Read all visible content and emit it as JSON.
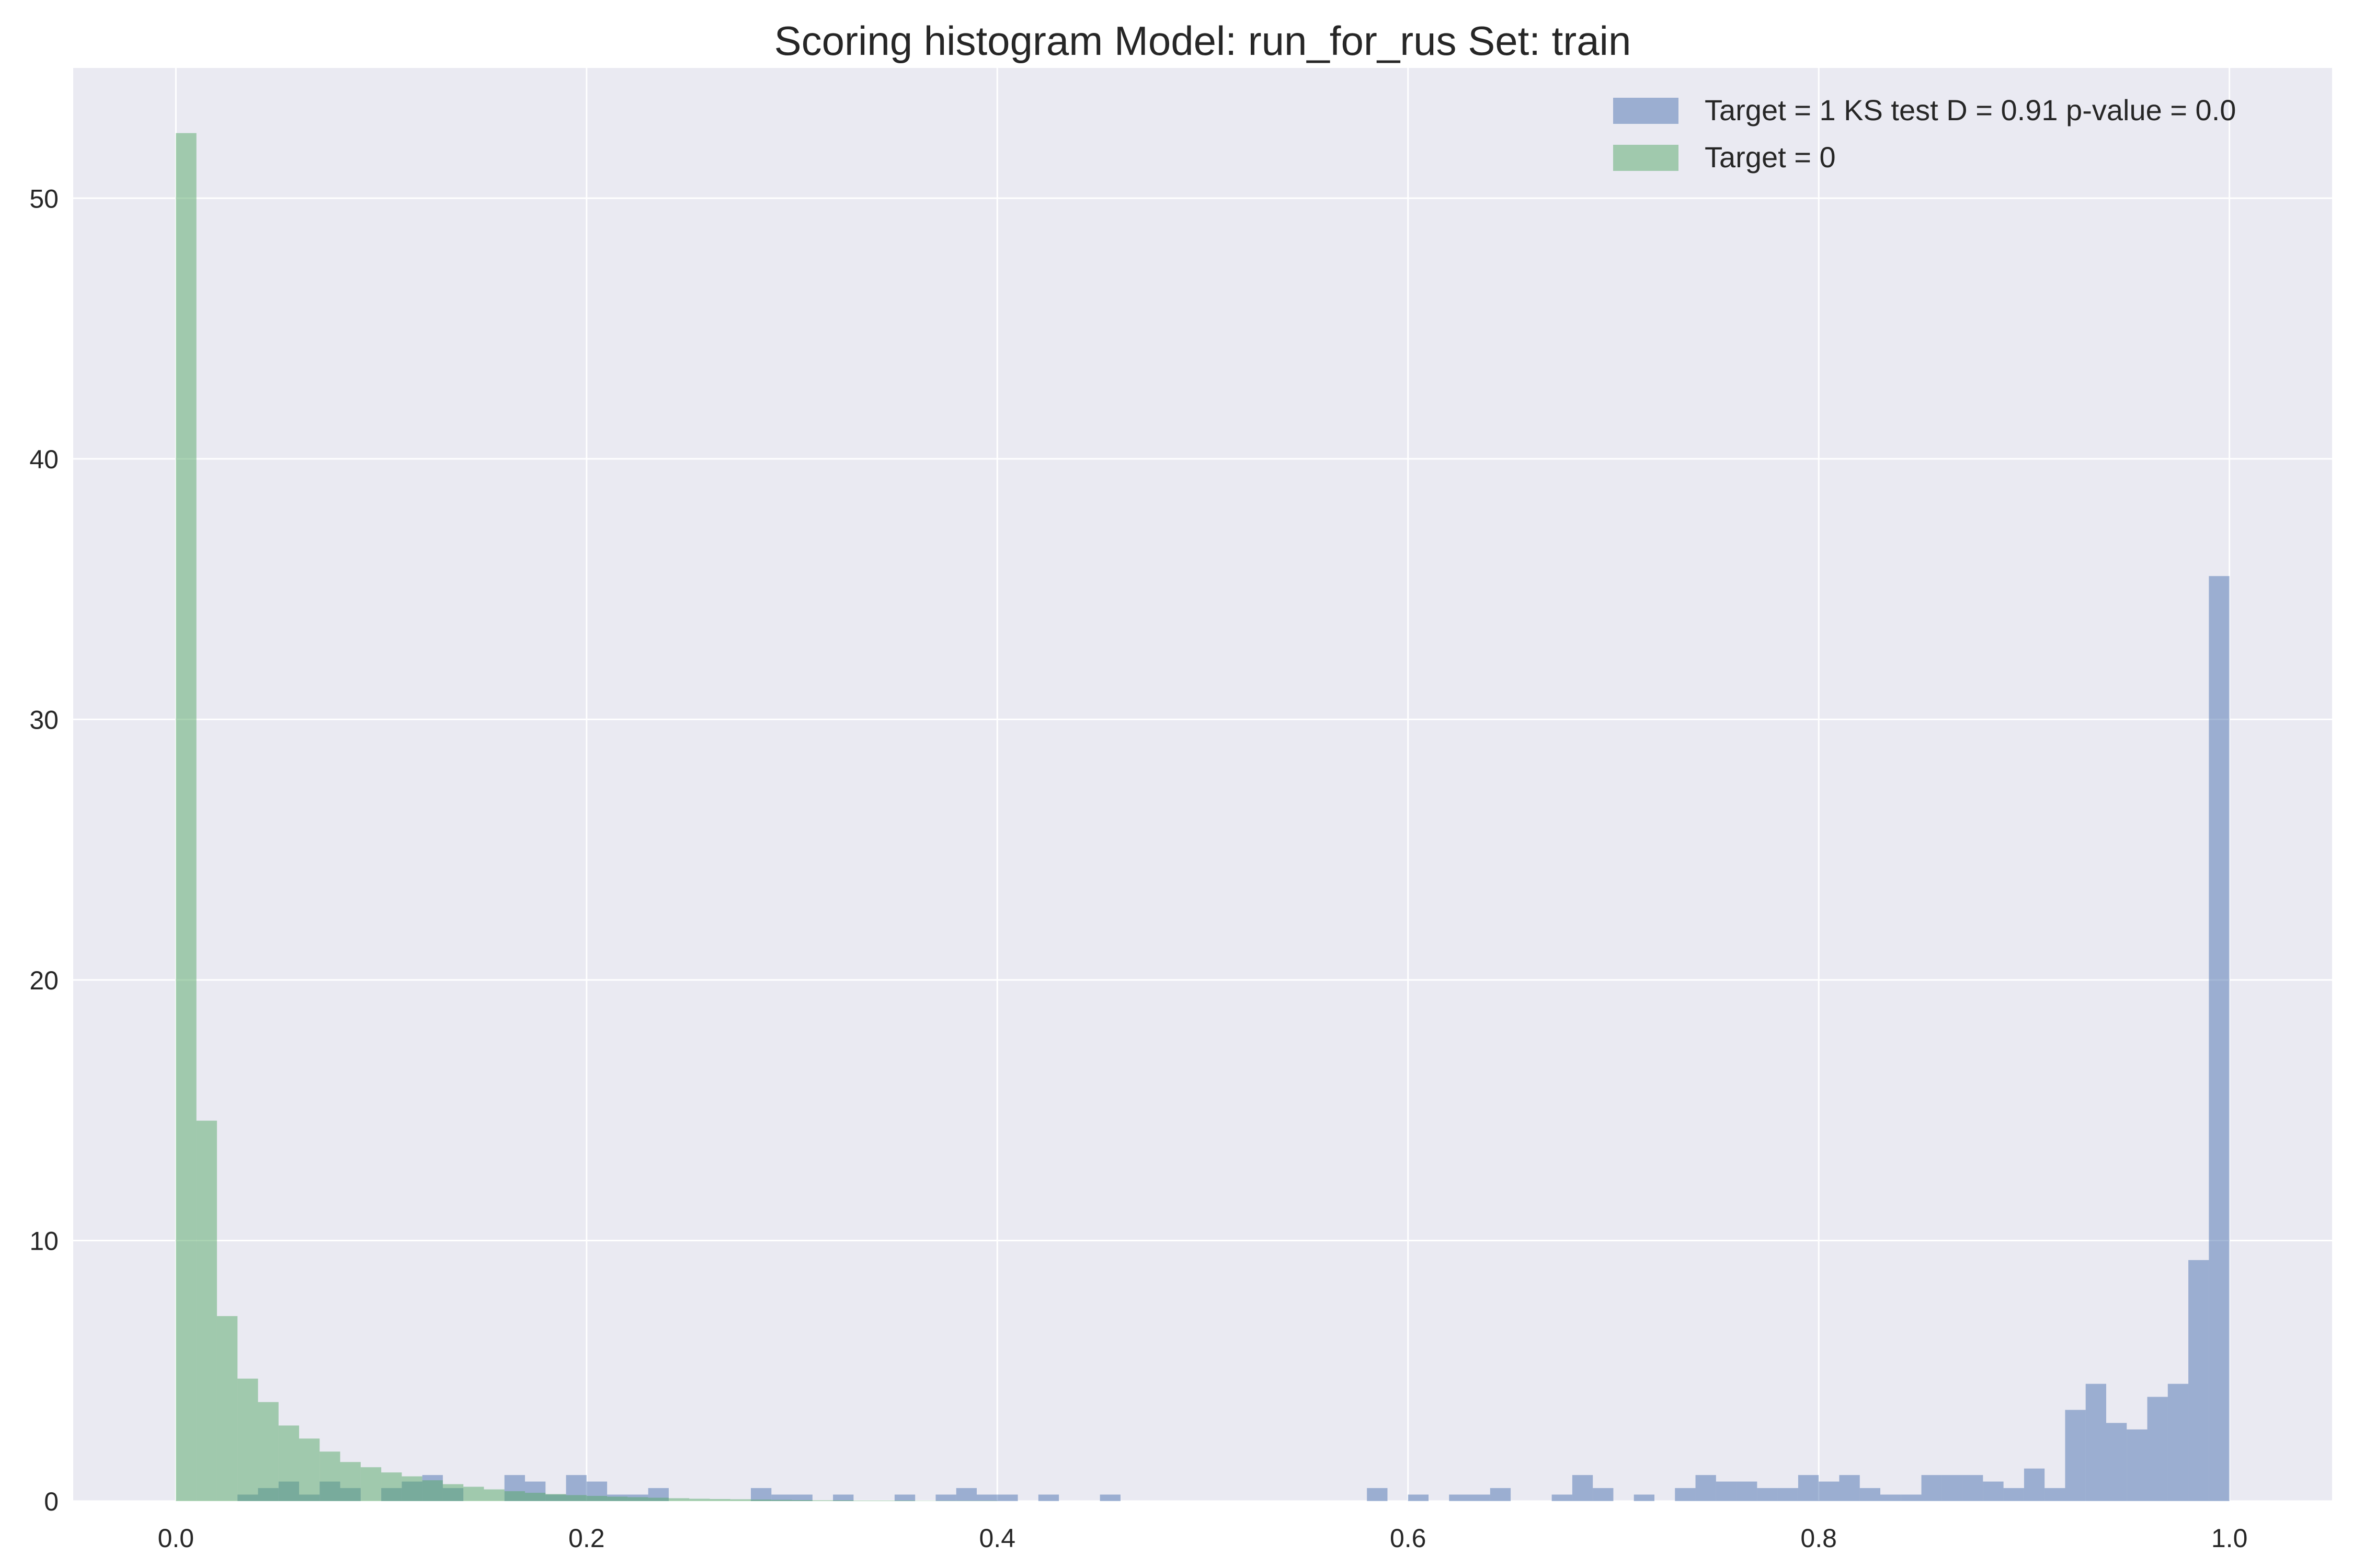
{
  "chart_data": {
    "type": "bar",
    "title": "Scoring histogram Model: run_for_rus Set: train",
    "xlabel": "",
    "ylabel": "",
    "xlim": [
      -0.05,
      1.05
    ],
    "ylim": [
      0,
      55
    ],
    "grid": true,
    "legend_position": "top-right",
    "bin_width": 0.01,
    "x_ticks": [
      0.0,
      0.2,
      0.4,
      0.6,
      0.8,
      1.0
    ],
    "x_tick_labels": [
      "0.0",
      "0.2",
      "0.4",
      "0.6",
      "0.8",
      "1.0"
    ],
    "y_ticks": [
      0,
      10,
      20,
      30,
      40,
      50
    ],
    "y_tick_labels": [
      "0",
      "10",
      "20",
      "30",
      "40",
      "50"
    ],
    "series": [
      {
        "name": "Target = 1 KS test D = 0.91 p-value = 0.0",
        "color": "#4c72b0",
        "values": [
          0,
          0,
          0,
          0.25,
          0.5,
          0.75,
          0.25,
          0.75,
          0.5,
          0,
          0.5,
          0.75,
          1.0,
          0.5,
          0,
          0,
          1.0,
          0.75,
          0.25,
          1.0,
          0.75,
          0.25,
          0.25,
          0.5,
          0,
          0,
          0,
          0,
          0.5,
          0.25,
          0.25,
          0,
          0.25,
          0,
          0,
          0.25,
          0,
          0.25,
          0.5,
          0.25,
          0.25,
          0,
          0.25,
          0,
          0,
          0.25,
          0,
          0,
          0,
          0,
          0,
          0,
          0,
          0,
          0,
          0,
          0,
          0,
          0.5,
          0,
          0.25,
          0,
          0.25,
          0.25,
          0.5,
          0,
          0,
          0.25,
          1.0,
          0.5,
          0,
          0.25,
          0,
          0.5,
          1.0,
          0.75,
          0.75,
          0.5,
          0.5,
          1.0,
          0.75,
          1.0,
          0.5,
          0.25,
          0.25,
          1.0,
          1.0,
          1.0,
          0.75,
          0.5,
          1.25,
          0.5,
          3.5,
          4.5,
          3.0,
          2.75,
          4.0,
          4.5,
          9.25,
          35.5
        ]
      },
      {
        "name": "Target = 0",
        "color": "#55a868",
        "values": [
          52.5,
          14.6,
          7.1,
          4.7,
          3.8,
          2.9,
          2.4,
          1.9,
          1.5,
          1.3,
          1.1,
          0.95,
          0.8,
          0.65,
          0.55,
          0.45,
          0.38,
          0.32,
          0.27,
          0.23,
          0.2,
          0.17,
          0.15,
          0.13,
          0.11,
          0.09,
          0.08,
          0.07,
          0.06,
          0.05,
          0.04,
          0.03,
          0.03,
          0.02,
          0.02,
          0.02,
          0.01,
          0.01,
          0.01,
          0.01
        ]
      }
    ]
  }
}
